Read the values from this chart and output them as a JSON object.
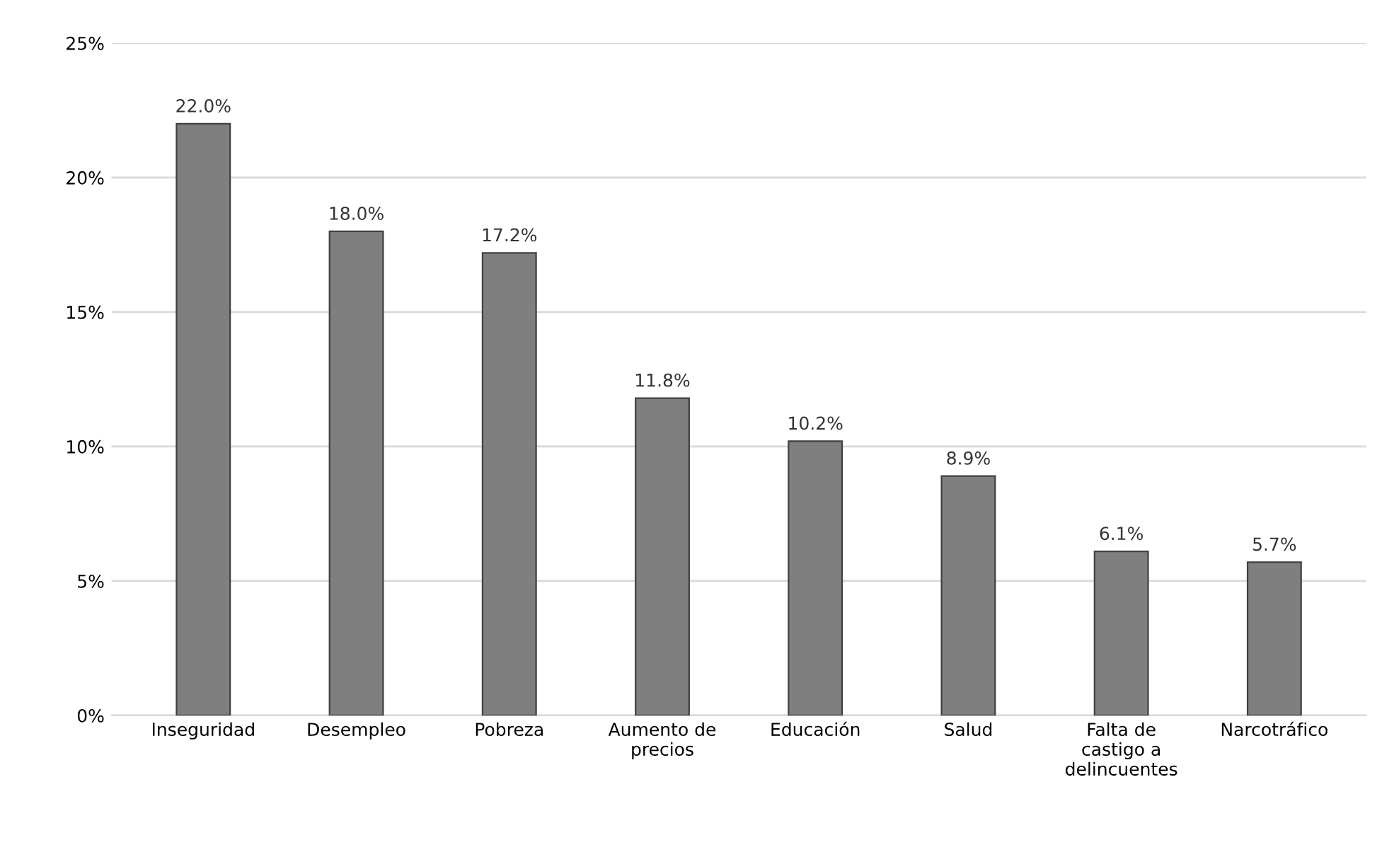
{
  "chart_data": {
    "type": "bar",
    "categories": [
      "Inseguridad",
      "Desempleo",
      "Pobreza",
      "Aumento de\nprecios",
      "Educación",
      "Salud",
      "Falta de\ncastigo a\ndelincuentes",
      "Narcotráfico"
    ],
    "values": [
      22.0,
      18.0,
      17.2,
      11.8,
      10.2,
      8.9,
      6.1,
      5.7
    ],
    "value_labels": [
      "22.0%",
      "18.0%",
      "17.2%",
      "11.8%",
      "10.2%",
      "8.9%",
      "6.1%",
      "5.7%"
    ],
    "color": "#7f7f7f",
    "ylim": [
      0,
      25
    ],
    "yticks": [
      {
        "value": 0,
        "label": "0%"
      },
      {
        "value": 5,
        "label": "5%"
      },
      {
        "value": 10,
        "label": "10%"
      },
      {
        "value": 15,
        "label": "15%"
      },
      {
        "value": 20,
        "label": "20%"
      },
      {
        "value": 25,
        "label": "25%"
      }
    ],
    "grid": "y"
  }
}
